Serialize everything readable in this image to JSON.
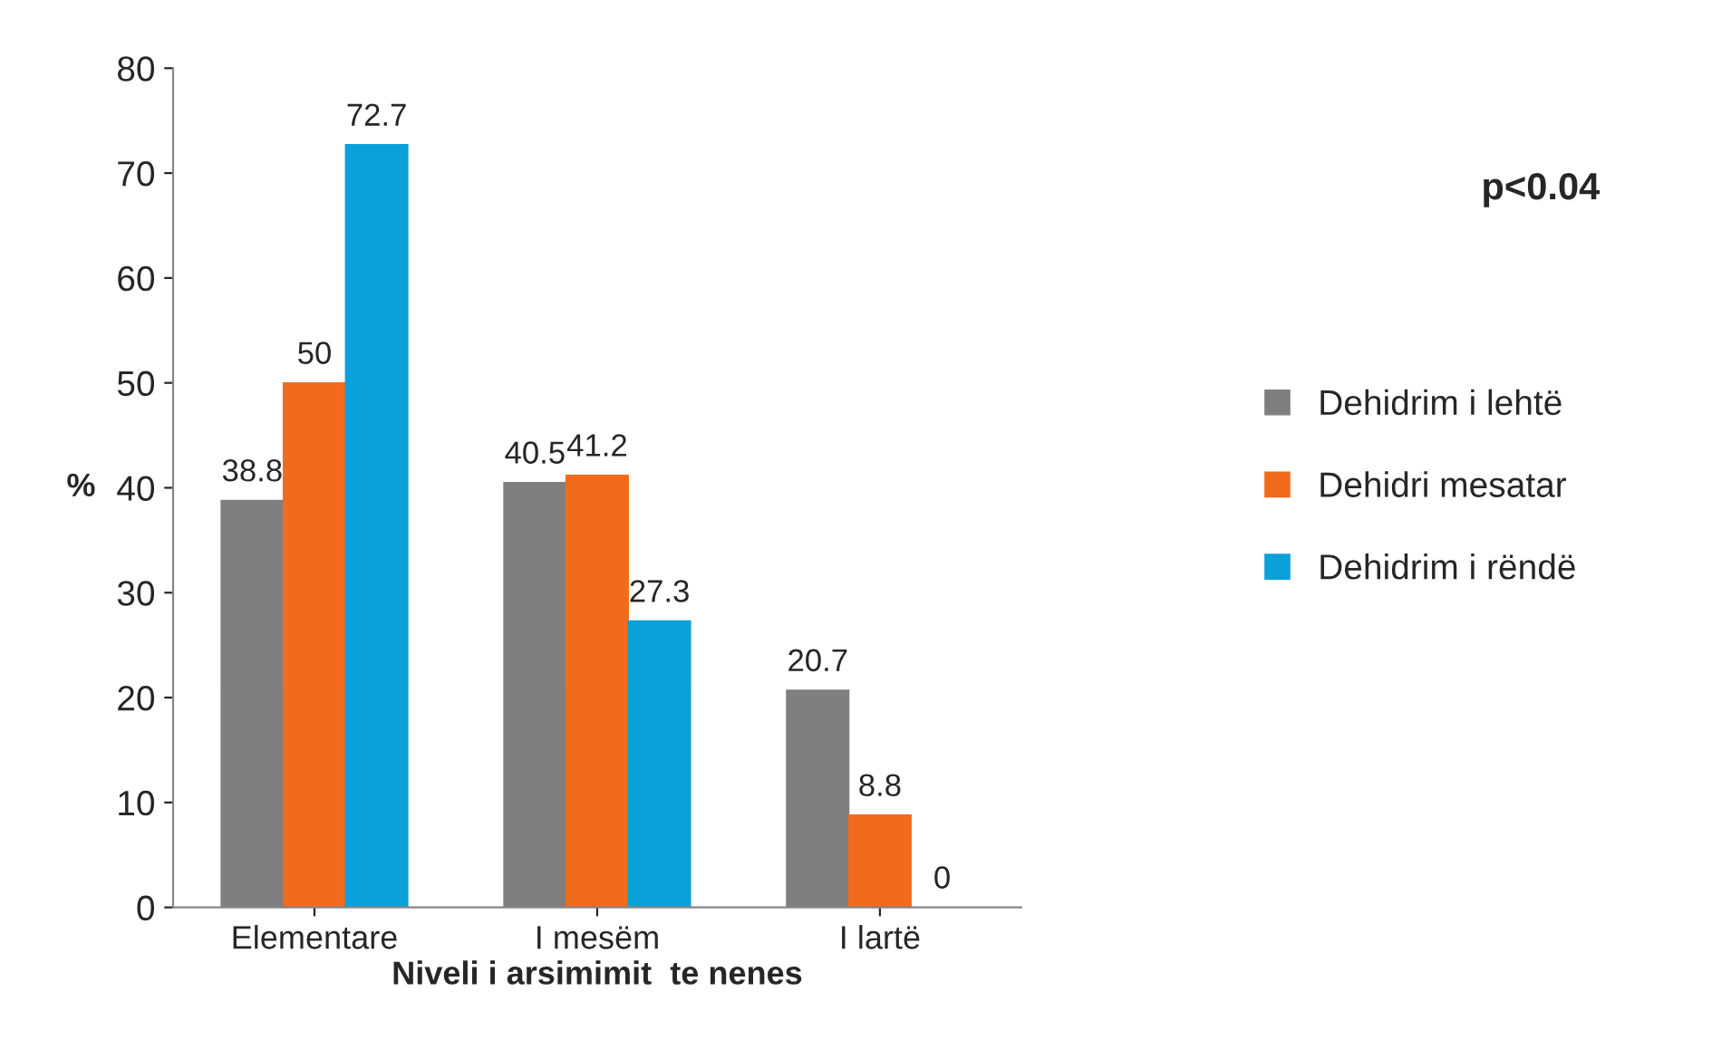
{
  "chart_data": {
    "type": "bar",
    "xlabel": "Niveli i arsimimit  te nenes",
    "ylabel": "%",
    "categories": [
      "Elementare",
      "I mesëm",
      "I lartë"
    ],
    "series": [
      {
        "name": "Dehidrim i lehtë",
        "color": "#7f7f7f",
        "values": [
          38.8,
          40.5,
          20.7
        ]
      },
      {
        "name": "Dehidri mesatar",
        "color": "#f26b1d",
        "values": [
          50,
          41.2,
          8.8
        ]
      },
      {
        "name": "Dehidrim i rëndë",
        "color": "#0aa0d8",
        "values": [
          72.7,
          27.3,
          0
        ]
      }
    ],
    "ylim": [
      0,
      80
    ],
    "yticks": [
      0,
      10,
      20,
      30,
      40,
      50,
      60,
      70,
      80
    ],
    "data_labels": true,
    "grid": false,
    "legend": "right",
    "annotations": [
      "p<0.04"
    ]
  }
}
